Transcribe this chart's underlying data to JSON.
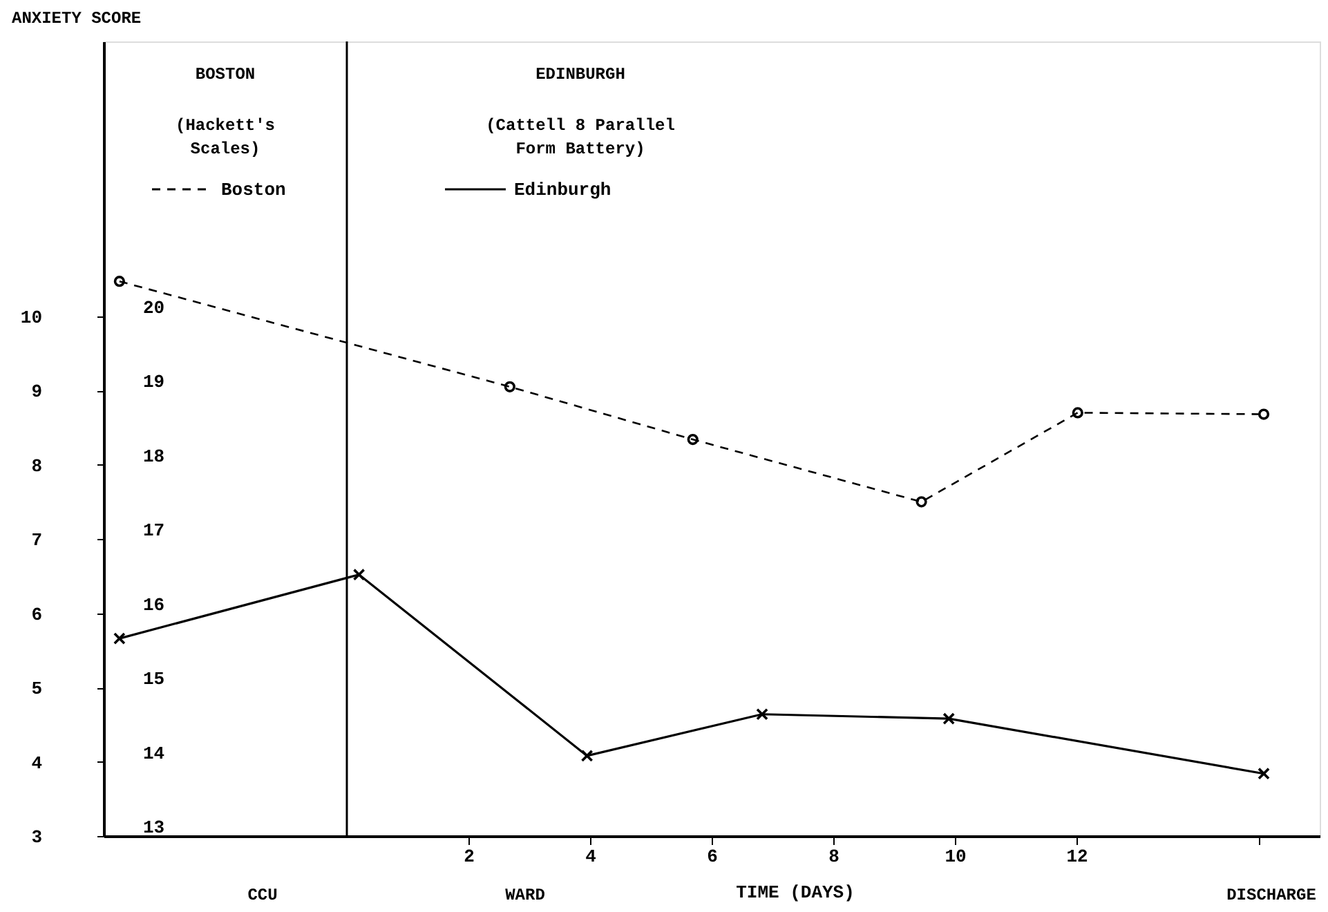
{
  "chart_data": {
    "type": "line",
    "ylabel": "ANXIETY SCORE",
    "xlabel": "TIME (DAYS)",
    "xlim": [
      -4,
      16
    ],
    "xticks": [
      2,
      4,
      6,
      8,
      10,
      12,
      {
        "value": 15,
        "label": null
      }
    ],
    "ylim": [
      3,
      13.7
    ],
    "yticks": [
      3,
      4,
      5,
      6,
      7,
      8,
      9,
      10
    ],
    "y2lim": [
      13,
      23.7
    ],
    "y2ticks": [
      13,
      14,
      15,
      16,
      17,
      18,
      19,
      20
    ],
    "grid": false,
    "legend": "top left",
    "ref_lines": [
      {
        "axis": "x",
        "value": 0,
        "label": null,
        "color": "#000000",
        "line_style": "solid"
      }
    ],
    "annotations": [
      "BOSTON",
      "(Hackett's\nScales)",
      "EDINBURGH",
      "(Cattell 8 Parallel\nForm Battery)",
      "CCU",
      "WARD",
      "DISCHARGE"
    ],
    "series": [
      {
        "name": "Boston",
        "color": "#000000",
        "marker": "circle",
        "line_style": "dashed",
        "axis": "y",
        "x": [
          -3.74,
          2.68,
          5.69,
          9.45,
          12.02,
          15.08
        ],
        "values": [
          10.47,
          9.05,
          8.34,
          7.5,
          8.7,
          8.68
        ]
      },
      {
        "name": "Edinburgh",
        "color": "#000000",
        "marker": "cross",
        "line_style": "solid",
        "axis": "y2",
        "x": [
          -3.74,
          0.2,
          3.95,
          6.83,
          9.9,
          15.08
        ],
        "values": [
          15.66,
          16.52,
          14.08,
          14.64,
          14.58,
          13.84
        ]
      }
    ]
  }
}
